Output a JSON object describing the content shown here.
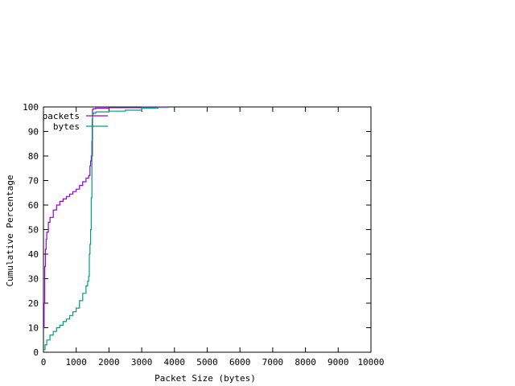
{
  "chart_data": {
    "type": "line",
    "title": "",
    "xlabel": "Packet Size (bytes)",
    "ylabel": "Cumulative Percentage",
    "xlim": [
      0,
      10000
    ],
    "ylim": [
      0,
      100
    ],
    "xticks": [
      0,
      1000,
      2000,
      3000,
      4000,
      5000,
      6000,
      7000,
      8000,
      9000,
      10000
    ],
    "yticks": [
      0,
      10,
      20,
      30,
      40,
      50,
      60,
      70,
      80,
      90,
      100
    ],
    "grid": false,
    "legend_position": "top-left",
    "series": [
      {
        "name": "packets",
        "color": "#9400d3",
        "x": [
          0,
          20,
          40,
          60,
          80,
          100,
          150,
          200,
          300,
          400,
          500,
          600,
          700,
          800,
          900,
          1000,
          1100,
          1200,
          1300,
          1380,
          1420,
          1440,
          1460,
          1480,
          1490,
          1500,
          1520,
          1600,
          2000,
          3000,
          3800
        ],
        "y": [
          10,
          20,
          35,
          42,
          46,
          49,
          53,
          55,
          58,
          60,
          61.5,
          62.5,
          63.5,
          64.5,
          65.5,
          66.5,
          68,
          69.5,
          71,
          72,
          76,
          78,
          80,
          86,
          95,
          99,
          99.3,
          99.5,
          99.7,
          99.9,
          100
        ]
      },
      {
        "name": "bytes",
        "color": "#009e73",
        "x": [
          0,
          50,
          100,
          200,
          300,
          400,
          500,
          600,
          700,
          800,
          900,
          1000,
          1100,
          1200,
          1300,
          1350,
          1380,
          1400,
          1420,
          1440,
          1460,
          1480,
          1500,
          1520,
          1600,
          2000,
          2500,
          3000,
          3500,
          3800
        ],
        "y": [
          1,
          3,
          5,
          7,
          8.5,
          10,
          11,
          12.5,
          13.5,
          15,
          16.5,
          18,
          21,
          24,
          27,
          29,
          31,
          40,
          44,
          50,
          63,
          80,
          97,
          97.5,
          98,
          98.3,
          98.7,
          99.5,
          99.8,
          100
        ]
      }
    ]
  }
}
